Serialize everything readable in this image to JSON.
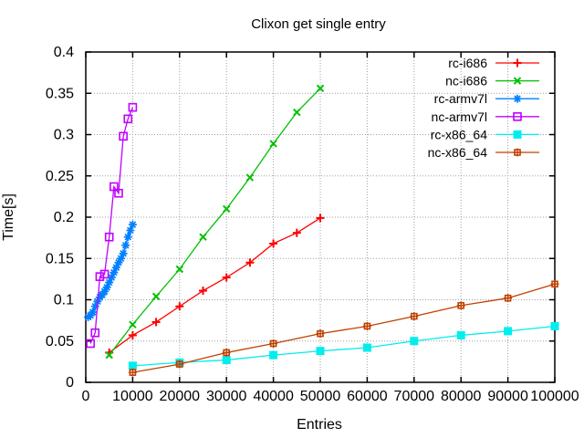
{
  "window": {
    "background": "#ffffff"
  },
  "chart_data": {
    "type": "line",
    "title": "Clixon get single entry",
    "xlabel": "Entries",
    "ylabel": "Time[s]",
    "xlim": [
      0,
      100000
    ],
    "ylim": [
      0,
      0.4
    ],
    "xticks": [
      0,
      10000,
      20000,
      30000,
      40000,
      50000,
      60000,
      70000,
      80000,
      90000,
      100000
    ],
    "xtick_labels": [
      "0",
      "10000",
      "20000",
      "30000",
      "40000",
      "50000",
      "60000",
      "70000",
      "80000",
      "90000",
      "100000"
    ],
    "yticks": [
      0,
      0.05,
      0.1,
      0.15,
      0.2,
      0.25,
      0.3,
      0.35,
      0.4
    ],
    "ytick_labels": [
      "0",
      "0.05",
      "0.1",
      "0.15",
      "0.2",
      "0.25",
      "0.3",
      "0.35",
      "0.4"
    ],
    "grid": true,
    "grid_color": "#a0a0a0",
    "border_color": "#000000",
    "legend_position": "inside-top-right",
    "series": [
      {
        "name": "rc-i686",
        "color": "#ff0000",
        "marker": "plus",
        "x": [
          5000,
          10000,
          15000,
          20000,
          25000,
          30000,
          35000,
          40000,
          45000,
          50000
        ],
        "y": [
          0.036,
          0.057,
          0.073,
          0.092,
          0.111,
          0.127,
          0.145,
          0.168,
          0.181,
          0.199
        ]
      },
      {
        "name": "nc-i686",
        "color": "#00c000",
        "marker": "cross",
        "x": [
          5000,
          10000,
          15000,
          20000,
          25000,
          30000,
          35000,
          40000,
          45000,
          50000
        ],
        "y": [
          0.033,
          0.07,
          0.104,
          0.137,
          0.176,
          0.21,
          0.248,
          0.289,
          0.327,
          0.356
        ]
      },
      {
        "name": "rc-armv7l",
        "color": "#0080ff",
        "marker": "asterisk",
        "x": [
          500,
          1000,
          1500,
          2000,
          2500,
          3000,
          3500,
          4000,
          4500,
          5000,
          5500,
          6000,
          6500,
          7000,
          7500,
          8000,
          8500,
          9000,
          9500,
          10000
        ],
        "y": [
          0.079,
          0.081,
          0.085,
          0.092,
          0.098,
          0.103,
          0.106,
          0.11,
          0.115,
          0.121,
          0.127,
          0.133,
          0.139,
          0.145,
          0.15,
          0.156,
          0.166,
          0.176,
          0.184,
          0.191
        ]
      },
      {
        "name": "nc-armv7l",
        "color": "#c000ff",
        "marker": "square-open",
        "x": [
          1000,
          2000,
          3000,
          4000,
          5000,
          6000,
          7000,
          8000,
          9000,
          10000
        ],
        "y": [
          0.047,
          0.06,
          0.128,
          0.131,
          0.176,
          0.237,
          0.229,
          0.298,
          0.319,
          0.333
        ]
      },
      {
        "name": "rc-x86_64",
        "color": "#00eeee",
        "marker": "square-filled",
        "x": [
          10000,
          20000,
          30000,
          40000,
          50000,
          60000,
          70000,
          80000,
          90000,
          100000
        ],
        "y": [
          0.02,
          0.024,
          0.027,
          0.033,
          0.038,
          0.042,
          0.05,
          0.057,
          0.062,
          0.068
        ]
      },
      {
        "name": "nc-x86_64",
        "color": "#c04000",
        "marker": "square-plus",
        "x": [
          10000,
          20000,
          30000,
          40000,
          50000,
          60000,
          70000,
          80000,
          90000,
          100000
        ],
        "y": [
          0.012,
          0.022,
          0.036,
          0.047,
          0.059,
          0.068,
          0.08,
          0.093,
          0.102,
          0.119
        ]
      }
    ]
  }
}
